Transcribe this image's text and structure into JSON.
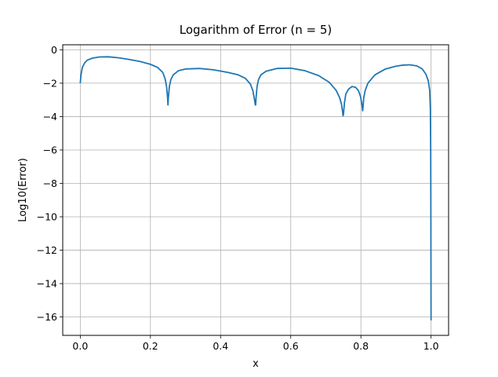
{
  "chart_data": {
    "type": "line",
    "title": "Logarithm of Error (n = 5)",
    "xlabel": "x",
    "ylabel": "Log10(Error)",
    "xlim": [
      -0.05,
      1.05
    ],
    "ylim": [
      -17.1,
      0.3
    ],
    "xticks": [
      0.0,
      0.2,
      0.4,
      0.6,
      0.8,
      1.0
    ],
    "xtick_labels": [
      "0.0",
      "0.2",
      "0.4",
      "0.6",
      "0.8",
      "1.0"
    ],
    "yticks": [
      0,
      -2,
      -4,
      -6,
      -8,
      -10,
      -12,
      -14,
      -16
    ],
    "ytick_labels": [
      "0",
      "−2",
      "−4",
      "−6",
      "−8",
      "−10",
      "−12",
      "−14",
      "−16"
    ],
    "grid": true,
    "color": "#1f77b4",
    "series": [
      {
        "x": [
          0.0,
          0.002,
          0.006,
          0.012,
          0.02,
          0.035,
          0.055,
          0.08,
          0.11,
          0.14,
          0.17,
          0.2,
          0.22,
          0.235,
          0.242,
          0.246,
          0.249,
          0.25,
          0.251,
          0.254,
          0.258,
          0.265,
          0.28,
          0.3,
          0.34,
          0.38,
          0.42,
          0.45,
          0.47,
          0.485,
          0.492,
          0.496,
          0.499,
          0.5,
          0.501,
          0.504,
          0.508,
          0.515,
          0.53,
          0.56,
          0.6,
          0.64,
          0.68,
          0.71,
          0.73,
          0.74,
          0.745,
          0.748,
          0.749,
          0.75,
          0.751,
          0.753,
          0.757,
          0.765,
          0.775,
          0.785,
          0.793,
          0.799,
          0.803,
          0.805,
          0.806,
          0.808,
          0.812,
          0.82,
          0.84,
          0.87,
          0.9,
          0.92,
          0.94,
          0.96,
          0.975,
          0.985,
          0.992,
          0.996,
          0.998,
          0.999,
          0.9995,
          1.0,
          1.0
        ],
        "y": [
          -2.0,
          -1.5,
          -1.05,
          -0.8,
          -0.62,
          -0.5,
          -0.43,
          -0.42,
          -0.48,
          -0.58,
          -0.7,
          -0.87,
          -1.05,
          -1.35,
          -1.75,
          -2.2,
          -2.9,
          -3.3,
          -2.9,
          -2.2,
          -1.8,
          -1.5,
          -1.25,
          -1.15,
          -1.12,
          -1.2,
          -1.35,
          -1.5,
          -1.7,
          -2.05,
          -2.45,
          -2.9,
          -3.3,
          -3.3,
          -2.9,
          -2.2,
          -1.8,
          -1.5,
          -1.28,
          -1.12,
          -1.1,
          -1.25,
          -1.55,
          -1.95,
          -2.45,
          -2.9,
          -3.3,
          -3.75,
          -3.95,
          -3.9,
          -3.7,
          -3.2,
          -2.65,
          -2.35,
          -2.2,
          -2.25,
          -2.45,
          -2.8,
          -3.3,
          -3.65,
          -3.45,
          -2.9,
          -2.45,
          -2.0,
          -1.5,
          -1.15,
          -0.98,
          -0.92,
          -0.9,
          -0.97,
          -1.15,
          -1.45,
          -1.85,
          -2.4,
          -3.5,
          -6.0,
          -10.0,
          -16.2,
          -16.2
        ]
      }
    ]
  }
}
